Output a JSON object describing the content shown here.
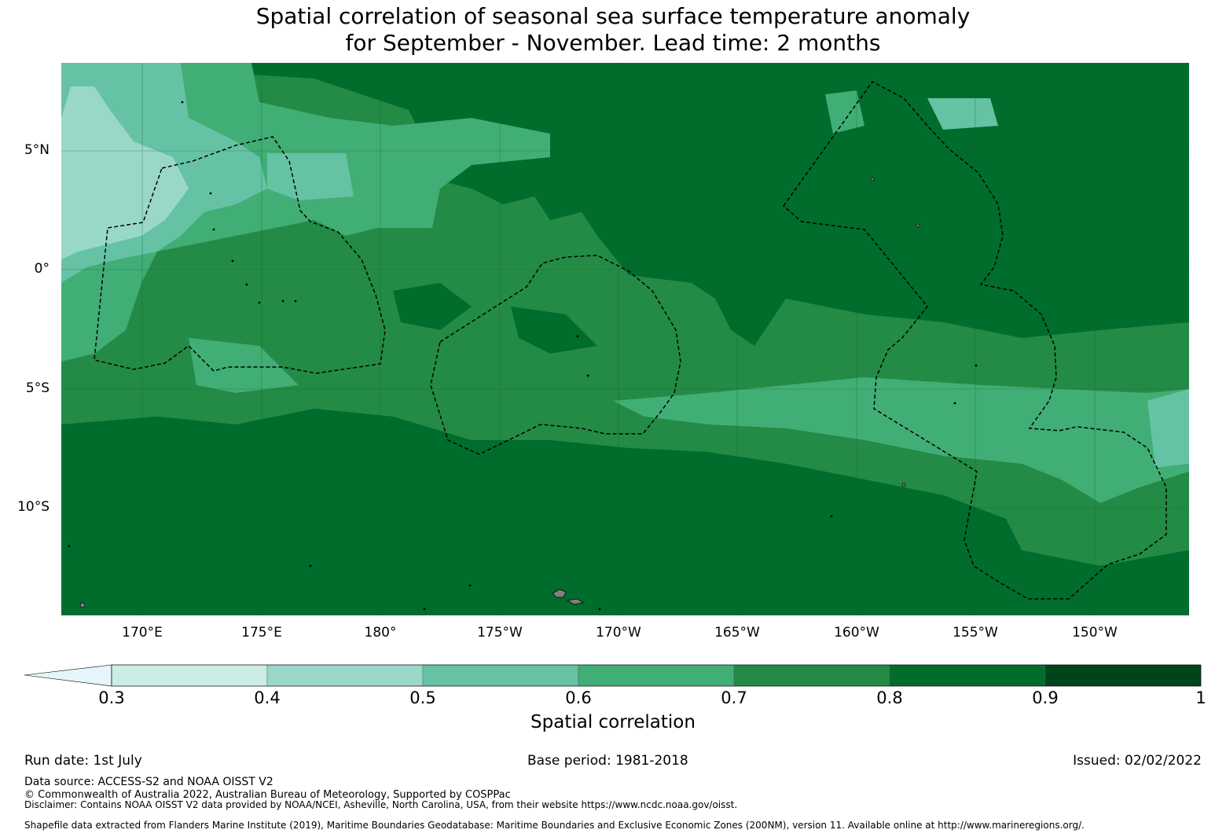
{
  "title": {
    "line1": "Spatial correlation of seasonal sea surface temperature anomaly",
    "line2": "for September - November. Lead time: 2 months"
  },
  "map": {
    "lat_labels": [
      "5°N",
      "0°",
      "5°S",
      "10°S"
    ],
    "lon_labels": [
      "170°E",
      "175°E",
      "180°",
      "175°W",
      "170°W",
      "165°W",
      "160°W",
      "155°W",
      "150°W"
    ],
    "background_color": "#238b45",
    "eez_line_color": "#000000",
    "land_color": "#808080"
  },
  "colorbar": {
    "ticks": [
      "0.3",
      "0.4",
      "0.5",
      "0.6",
      "0.7",
      "0.8",
      "0.9",
      "1"
    ],
    "colors": [
      "#e5f5f9",
      "#ccece6",
      "#99d8c9",
      "#66c2a4",
      "#41ae76",
      "#238b45",
      "#006d2c",
      "#00441b"
    ],
    "label": "Spatial correlation"
  },
  "footer": {
    "run_date": "Run date: 1st July",
    "base_period": "Base period: 1981-2018",
    "issued": "Issued: 02/02/2022",
    "data_source": "Data source: ACCESS-S2 and NOAA OISST V2",
    "copyright": "© Commonwealth of Australia 2022, Australian Bureau of Meteorology, Supported by COSPPac",
    "disclaimer": "Disclaimer: Contains NOAA OISST V2 data provided by NOAA/NCEI, Asheville, North Carolina, USA, from their website https://www.ncdc.noaa.gov/oisst.",
    "shapefile": "Shapefile data extracted from Flanders Marine Institute (2019), Maritime Boundaries Geodatabase: Maritime Boundaries and Exclusive Economic Zones (200NM), version 11. Available online at http://www.marineregions.org/."
  }
}
